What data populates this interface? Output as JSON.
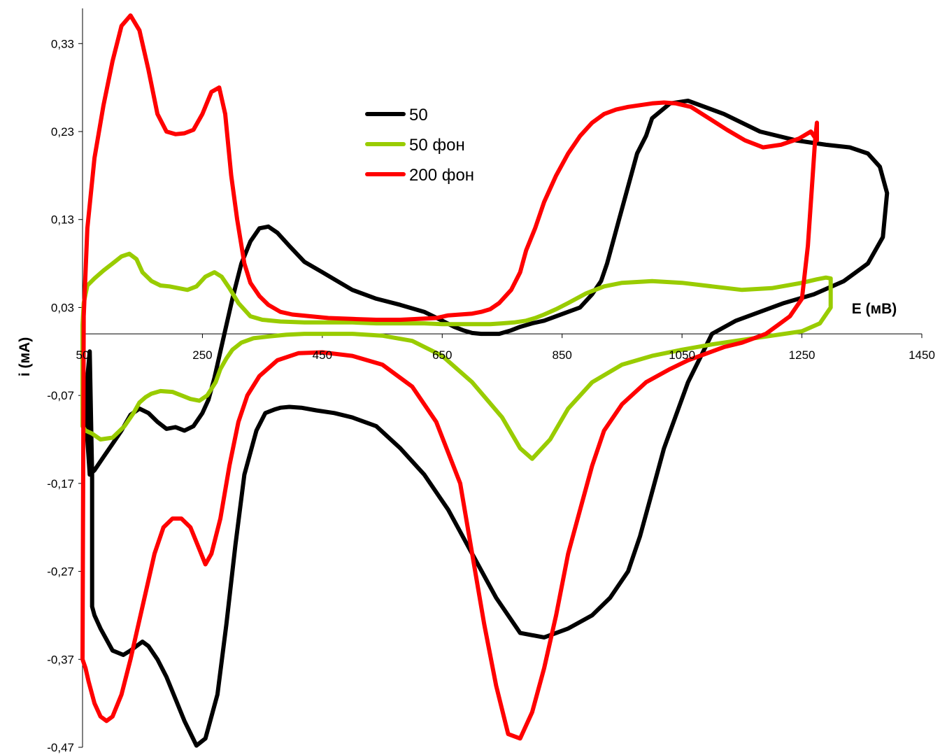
{
  "chart_data": {
    "type": "line",
    "title": "",
    "xlabel": "E (мВ)",
    "ylabel": "i (мА)",
    "xlim": [
      50,
      1450
    ],
    "ylim": [
      -0.47,
      0.37
    ],
    "x_ticks": [
      "50",
      "250",
      "450",
      "650",
      "850",
      "1050",
      "1250",
      "1450"
    ],
    "y_ticks": [
      "0,33",
      "0,23",
      "0,13",
      "0,03",
      "-0,07",
      "-0,17",
      "-0,27",
      "-0,37",
      "-0,47"
    ],
    "x_tick_values": [
      50,
      250,
      450,
      650,
      850,
      1050,
      1250,
      1450
    ],
    "y_tick_values": [
      0.33,
      0.23,
      0.13,
      0.03,
      -0.07,
      -0.17,
      -0.27,
      -0.37,
      -0.47
    ],
    "grid": false,
    "legend_position": "top-center",
    "series": [
      {
        "name": "50",
        "color": "#000000",
        "x": [
          66,
          66,
          70,
          80,
          100,
          118,
          130,
          140,
          150,
          160,
          175,
          190,
          205,
          220,
          240,
          255,
          275,
          290,
          305,
          320,
          340,
          355,
          370,
          380,
          395,
          415,
          440,
          470,
          500,
          540,
          580,
          620,
          660,
          700,
          740,
          780,
          820,
          860,
          900,
          930,
          960,
          980,
          1000,
          1020,
          1060,
          1100,
          1140,
          1180,
          1220,
          1270,
          1320,
          1360,
          1385,
          1392,
          1380,
          1360,
          1330,
          1290,
          1240,
          1180,
          1120,
          1060,
          1030,
          1000,
          990,
          975,
          965,
          955,
          945,
          935,
          925,
          915,
          900,
          880,
          860,
          840,
          820,
          800,
          780,
          765,
          745,
          730,
          715,
          700,
          685,
          670,
          650,
          620,
          580,
          540,
          500,
          470,
          450,
          420,
          395,
          375,
          360,
          345,
          330,
          315,
          300,
          290,
          280,
          270,
          260,
          250,
          235,
          220,
          205,
          190,
          175,
          160,
          145,
          130,
          115,
          100,
          85,
          70,
          62,
          58,
          58,
          62,
          66
        ],
        "y": [
          -0.16,
          -0.31,
          -0.32,
          -0.335,
          -0.36,
          -0.365,
          -0.36,
          -0.355,
          -0.35,
          -0.355,
          -0.37,
          -0.39,
          -0.415,
          -0.44,
          -0.468,
          -0.46,
          -0.41,
          -0.33,
          -0.24,
          -0.16,
          -0.11,
          -0.09,
          -0.086,
          -0.084,
          -0.083,
          -0.084,
          -0.087,
          -0.09,
          -0.095,
          -0.105,
          -0.13,
          -0.16,
          -0.2,
          -0.25,
          -0.3,
          -0.34,
          -0.345,
          -0.335,
          -0.32,
          -0.3,
          -0.27,
          -0.23,
          -0.18,
          -0.13,
          -0.055,
          0.0,
          0.015,
          0.025,
          0.035,
          0.045,
          0.06,
          0.08,
          0.11,
          0.16,
          0.19,
          0.205,
          0.212,
          0.215,
          0.22,
          0.23,
          0.25,
          0.265,
          0.262,
          0.245,
          0.225,
          0.205,
          0.18,
          0.155,
          0.13,
          0.105,
          0.08,
          0.06,
          0.045,
          0.03,
          0.025,
          0.02,
          0.015,
          0.012,
          0.008,
          0.004,
          0.0,
          0.0,
          0.0,
          0.001,
          0.004,
          0.008,
          0.015,
          0.025,
          0.033,
          0.04,
          0.05,
          0.062,
          0.07,
          0.082,
          0.1,
          0.115,
          0.122,
          0.12,
          0.105,
          0.08,
          0.04,
          0.01,
          -0.02,
          -0.05,
          -0.075,
          -0.09,
          -0.105,
          -0.11,
          -0.106,
          -0.108,
          -0.1,
          -0.09,
          -0.085,
          -0.092,
          -0.11,
          -0.125,
          -0.14,
          -0.155,
          -0.16,
          -0.12,
          -0.05,
          -0.02,
          -0.16
        ]
      },
      {
        "name": "50 фон",
        "color": "#99cc00",
        "x": [
          50,
          55,
          65,
          80,
          100,
          120,
          135,
          145,
          155,
          165,
          180,
          200,
          215,
          230,
          245,
          258,
          272,
          280,
          290,
          300,
          315,
          335,
          360,
          390,
          420,
          460,
          500,
          550,
          600,
          650,
          700,
          750,
          780,
          800,
          830,
          860,
          900,
          950,
          1000,
          1050,
          1100,
          1150,
          1200,
          1250,
          1280,
          1298,
          1298,
          1290,
          1275,
          1250,
          1200,
          1150,
          1100,
          1050,
          1000,
          950,
          920,
          890,
          860,
          840,
          820,
          805,
          790,
          770,
          750,
          730,
          710,
          690,
          670,
          650,
          620,
          580,
          540,
          500,
          460,
          420,
          380,
          350,
          330,
          310,
          295,
          282,
          270,
          255,
          240,
          225,
          210,
          195,
          180,
          165,
          150,
          140,
          128,
          115,
          100,
          85,
          70,
          58,
          52,
          50,
          50
        ],
        "y": [
          -0.105,
          -0.11,
          -0.113,
          -0.12,
          -0.118,
          -0.105,
          -0.09,
          -0.078,
          -0.072,
          -0.068,
          -0.065,
          -0.066,
          -0.07,
          -0.074,
          -0.076,
          -0.07,
          -0.055,
          -0.04,
          -0.028,
          -0.018,
          -0.01,
          -0.005,
          -0.003,
          -0.001,
          0.0,
          0.0,
          0.0,
          -0.002,
          -0.008,
          -0.025,
          -0.055,
          -0.095,
          -0.13,
          -0.142,
          -0.12,
          -0.085,
          -0.055,
          -0.035,
          -0.025,
          -0.018,
          -0.012,
          -0.007,
          -0.002,
          0.003,
          0.012,
          0.03,
          0.063,
          0.064,
          0.062,
          0.058,
          0.052,
          0.05,
          0.054,
          0.058,
          0.06,
          0.058,
          0.054,
          0.046,
          0.035,
          0.028,
          0.022,
          0.018,
          0.015,
          0.013,
          0.012,
          0.011,
          0.011,
          0.011,
          0.011,
          0.011,
          0.012,
          0.012,
          0.012,
          0.013,
          0.013,
          0.013,
          0.014,
          0.016,
          0.02,
          0.035,
          0.052,
          0.065,
          0.07,
          0.065,
          0.054,
          0.05,
          0.052,
          0.054,
          0.055,
          0.06,
          0.07,
          0.085,
          0.091,
          0.088,
          0.08,
          0.072,
          0.063,
          0.055,
          0.035,
          0.01,
          -0.105
        ]
      },
      {
        "name": "200 фон",
        "color": "#ff0000",
        "x": [
          50,
          55,
          60,
          70,
          80,
          90,
          100,
          115,
          130,
          150,
          170,
          185,
          200,
          215,
          230,
          245,
          255,
          265,
          280,
          295,
          310,
          325,
          345,
          375,
          410,
          450,
          500,
          550,
          600,
          640,
          680,
          700,
          720,
          740,
          760,
          780,
          800,
          820,
          840,
          860,
          880,
          900,
          920,
          950,
          990,
          1030,
          1060,
          1080,
          1100,
          1120,
          1150,
          1170,
          1190,
          1210,
          1230,
          1250,
          1260,
          1268,
          1272,
          1275,
          1275,
          1265,
          1245,
          1215,
          1185,
          1155,
          1125,
          1095,
          1065,
          1040,
          1020,
          1000,
          980,
          960,
          940,
          920,
          900,
          880,
          860,
          840,
          820,
          805,
          790,
          780,
          765,
          745,
          730,
          715,
          700,
          680,
          660,
          640,
          610,
          580,
          540,
          500,
          460,
          430,
          400,
          380,
          360,
          345,
          330,
          320,
          308,
          298,
          288,
          278,
          265,
          250,
          235,
          220,
          205,
          190,
          175,
          160,
          145,
          130,
          115,
          100,
          85,
          70,
          58,
          52,
          50
        ],
        "y": [
          -0.37,
          -0.38,
          -0.395,
          -0.42,
          -0.435,
          -0.44,
          -0.435,
          -0.41,
          -0.37,
          -0.31,
          -0.25,
          -0.22,
          -0.21,
          -0.21,
          -0.22,
          -0.245,
          -0.262,
          -0.25,
          -0.21,
          -0.15,
          -0.1,
          -0.07,
          -0.048,
          -0.03,
          -0.022,
          -0.021,
          -0.025,
          -0.035,
          -0.06,
          -0.1,
          -0.17,
          -0.25,
          -0.33,
          -0.4,
          -0.455,
          -0.46,
          -0.43,
          -0.38,
          -0.32,
          -0.25,
          -0.2,
          -0.15,
          -0.11,
          -0.08,
          -0.055,
          -0.04,
          -0.03,
          -0.025,
          -0.02,
          -0.015,
          -0.01,
          -0.005,
          0.0,
          0.01,
          0.02,
          0.04,
          0.1,
          0.18,
          0.22,
          0.24,
          0.22,
          0.23,
          0.222,
          0.215,
          0.212,
          0.22,
          0.232,
          0.245,
          0.258,
          0.262,
          0.263,
          0.262,
          0.26,
          0.258,
          0.255,
          0.25,
          0.24,
          0.225,
          0.205,
          0.18,
          0.15,
          0.12,
          0.095,
          0.07,
          0.05,
          0.035,
          0.028,
          0.025,
          0.023,
          0.022,
          0.021,
          0.018,
          0.017,
          0.016,
          0.016,
          0.017,
          0.018,
          0.02,
          0.022,
          0.025,
          0.033,
          0.043,
          0.058,
          0.08,
          0.13,
          0.18,
          0.25,
          0.28,
          0.275,
          0.25,
          0.232,
          0.228,
          0.227,
          0.23,
          0.25,
          0.3,
          0.345,
          0.362,
          0.35,
          0.31,
          0.26,
          0.2,
          0.12,
          0.02,
          -0.37
        ]
      }
    ]
  }
}
